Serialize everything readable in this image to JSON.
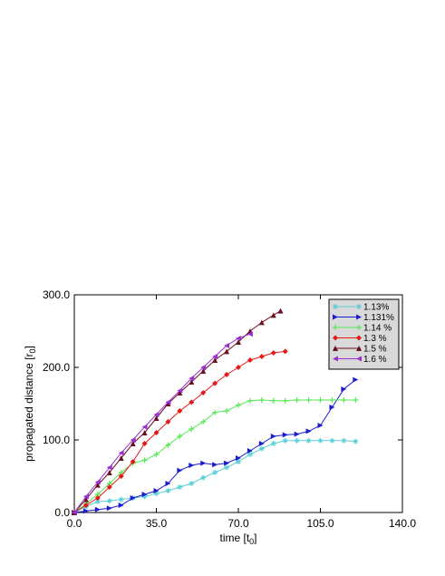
{
  "chart_data": {
    "type": "line",
    "xlabel": {
      "base": "time [t",
      "sub": "0",
      "end": "]"
    },
    "ylabel": {
      "base": "propagated distance [r",
      "sub": "0",
      "end": "]"
    },
    "xlim": [
      0,
      140
    ],
    "ylim": [
      0,
      300
    ],
    "x_ticks": [
      0,
      35,
      70,
      105,
      140
    ],
    "x_tick_labels": [
      "0.0",
      "35.0",
      "70.0",
      "105.0",
      "140.0"
    ],
    "y_ticks": [
      0,
      100,
      200,
      300
    ],
    "y_tick_labels": [
      "0.0",
      "100.0",
      "200.0",
      "300.0"
    ],
    "grid": false,
    "legend_position": "top-right",
    "series": [
      {
        "name": "1.13%",
        "color": "#5ad0d8",
        "marker": "star",
        "points": [
          [
            0,
            0
          ],
          [
            5,
            8
          ],
          [
            10,
            15
          ],
          [
            15,
            16
          ],
          [
            20,
            18
          ],
          [
            25,
            20
          ],
          [
            30,
            22
          ],
          [
            35,
            26
          ],
          [
            40,
            30
          ],
          [
            45,
            35
          ],
          [
            50,
            40
          ],
          [
            55,
            48
          ],
          [
            60,
            55
          ],
          [
            65,
            62
          ],
          [
            70,
            70
          ],
          [
            75,
            80
          ],
          [
            80,
            88
          ],
          [
            85,
            95
          ],
          [
            90,
            99
          ],
          [
            95,
            99
          ],
          [
            100,
            99
          ],
          [
            105,
            99
          ],
          [
            110,
            99
          ],
          [
            115,
            99
          ],
          [
            120,
            98
          ]
        ]
      },
      {
        "name": "1.131%",
        "color": "#1c1cd0",
        "marker": "triangle-right",
        "points": [
          [
            0,
            0
          ],
          [
            5,
            2
          ],
          [
            10,
            4
          ],
          [
            15,
            6
          ],
          [
            20,
            10
          ],
          [
            25,
            20
          ],
          [
            30,
            25
          ],
          [
            35,
            30
          ],
          [
            40,
            40
          ],
          [
            45,
            58
          ],
          [
            50,
            65
          ],
          [
            55,
            68
          ],
          [
            60,
            66
          ],
          [
            65,
            68
          ],
          [
            70,
            75
          ],
          [
            75,
            85
          ],
          [
            80,
            95
          ],
          [
            85,
            105
          ],
          [
            90,
            107
          ],
          [
            95,
            108
          ],
          [
            100,
            112
          ],
          [
            105,
            120
          ],
          [
            110,
            145
          ],
          [
            115,
            170
          ],
          [
            120,
            183
          ]
        ]
      },
      {
        "name": "1.14 %",
        "color": "#55e855",
        "marker": "plus",
        "points": [
          [
            0,
            0
          ],
          [
            5,
            12
          ],
          [
            10,
            25
          ],
          [
            15,
            40
          ],
          [
            20,
            55
          ],
          [
            25,
            68
          ],
          [
            30,
            72
          ],
          [
            35,
            80
          ],
          [
            40,
            93
          ],
          [
            45,
            105
          ],
          [
            50,
            115
          ],
          [
            55,
            125
          ],
          [
            60,
            138
          ],
          [
            65,
            140
          ],
          [
            70,
            148
          ],
          [
            75,
            154
          ],
          [
            80,
            155
          ],
          [
            85,
            154
          ],
          [
            90,
            154
          ],
          [
            95,
            155
          ],
          [
            100,
            155
          ],
          [
            105,
            155
          ],
          [
            110,
            155
          ],
          [
            115,
            155
          ],
          [
            120,
            155
          ]
        ]
      },
      {
        "name": "1.3 %",
        "color": "#e41a1a",
        "marker": "diamond",
        "points": [
          [
            0,
            0
          ],
          [
            5,
            10
          ],
          [
            10,
            20
          ],
          [
            15,
            35
          ],
          [
            20,
            50
          ],
          [
            25,
            70
          ],
          [
            30,
            95
          ],
          [
            35,
            110
          ],
          [
            40,
            125
          ],
          [
            45,
            140
          ],
          [
            50,
            152
          ],
          [
            55,
            165
          ],
          [
            60,
            178
          ],
          [
            65,
            190
          ],
          [
            70,
            200
          ],
          [
            75,
            210
          ],
          [
            80,
            215
          ],
          [
            85,
            220
          ],
          [
            90,
            222
          ]
        ]
      },
      {
        "name": "1.5 %",
        "color": "#6b1020",
        "marker": "triangle-up",
        "points": [
          [
            0,
            0
          ],
          [
            5,
            18
          ],
          [
            10,
            38
          ],
          [
            15,
            55
          ],
          [
            20,
            75
          ],
          [
            25,
            95
          ],
          [
            30,
            110
          ],
          [
            35,
            130
          ],
          [
            40,
            150
          ],
          [
            45,
            165
          ],
          [
            50,
            180
          ],
          [
            55,
            195
          ],
          [
            60,
            210
          ],
          [
            65,
            222
          ],
          [
            70,
            235
          ],
          [
            75,
            250
          ],
          [
            80,
            262
          ],
          [
            85,
            272
          ],
          [
            88,
            278
          ]
        ]
      },
      {
        "name": "1.6 %",
        "color": "#9a30d0",
        "marker": "triangle-left",
        "points": [
          [
            0,
            0
          ],
          [
            5,
            22
          ],
          [
            10,
            42
          ],
          [
            15,
            62
          ],
          [
            20,
            82
          ],
          [
            25,
            100
          ],
          [
            30,
            118
          ],
          [
            35,
            135
          ],
          [
            40,
            152
          ],
          [
            45,
            168
          ],
          [
            50,
            185
          ],
          [
            55,
            200
          ],
          [
            60,
            215
          ],
          [
            65,
            230
          ],
          [
            70,
            240
          ],
          [
            75,
            246
          ]
        ]
      }
    ]
  }
}
